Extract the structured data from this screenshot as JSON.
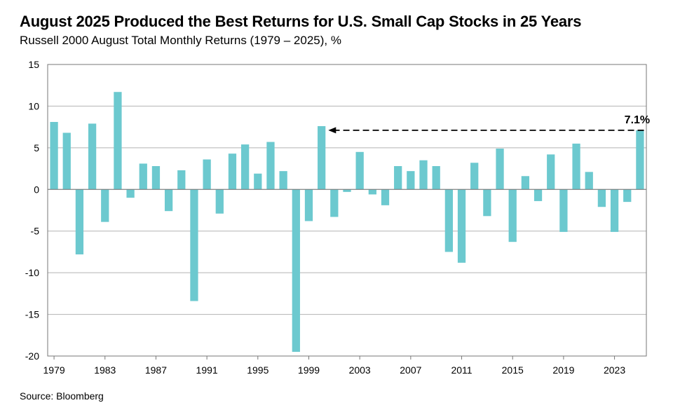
{
  "page": {
    "title": "August 2025 Produced the Best Returns for U.S. Small Cap Stocks in 25 Years",
    "subtitle": "Russell 2000 August Total Monthly Returns (1979 – 2025), %",
    "source": "Source: Bloomberg"
  },
  "colors": {
    "bar": "#6cc9cf",
    "grid": "#b3b3b3",
    "axis": "#777777",
    "arrow": "#000000"
  },
  "chart_data": {
    "type": "bar",
    "title": "August 2025 Produced the Best Returns for U.S. Small Cap Stocks in 25 Years",
    "subtitle": "Russell 2000 August Total Monthly Returns (1979 – 2025), %",
    "xlabel": "",
    "ylabel": "",
    "ylim": [
      -20,
      15
    ],
    "yticks": [
      15,
      10,
      5,
      0,
      -5,
      -10,
      -15,
      -20
    ],
    "grid": true,
    "categories": [
      1979,
      1980,
      1981,
      1982,
      1983,
      1984,
      1985,
      1986,
      1987,
      1988,
      1989,
      1990,
      1991,
      1992,
      1993,
      1994,
      1995,
      1996,
      1997,
      1998,
      1999,
      2000,
      2001,
      2002,
      2003,
      2004,
      2005,
      2006,
      2007,
      2008,
      2009,
      2010,
      2011,
      2012,
      2013,
      2014,
      2015,
      2016,
      2017,
      2018,
      2019,
      2020,
      2021,
      2022,
      2023,
      2024,
      2025
    ],
    "xtick_labels": [
      1979,
      1983,
      1987,
      1991,
      1995,
      1999,
      2003,
      2007,
      2011,
      2015,
      2019,
      2023
    ],
    "values": [
      8.1,
      6.8,
      -7.8,
      7.9,
      -3.9,
      11.7,
      -1.0,
      3.1,
      2.8,
      -2.6,
      2.3,
      -13.4,
      3.6,
      -2.9,
      4.3,
      5.4,
      1.9,
      5.7,
      2.2,
      -19.5,
      -3.8,
      7.6,
      -3.3,
      -0.3,
      4.5,
      -0.6,
      -1.9,
      2.8,
      2.2,
      3.5,
      2.8,
      -7.5,
      -8.8,
      3.2,
      -3.2,
      4.9,
      -6.3,
      1.6,
      -1.4,
      4.2,
      -5.1,
      5.5,
      2.1,
      -2.1,
      -5.1,
      -1.5,
      7.1
    ],
    "annotation": {
      "label": "7.1%",
      "from_category": 2025,
      "to_category": 2000,
      "value": 7.1
    }
  }
}
